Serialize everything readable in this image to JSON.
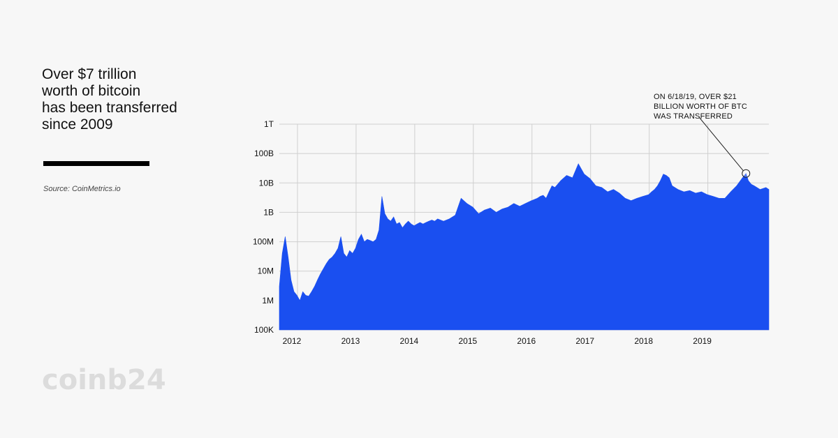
{
  "headline": {
    "lines": [
      "Over $7 trillion",
      "worth of bitcoin",
      "has been transferred",
      "since 2009"
    ]
  },
  "source": "Source: CoinMetrics.io",
  "logo": "coinb24",
  "colors": {
    "area": "#1a4ff0",
    "grid": "#cfcfcf",
    "text": "#111111",
    "logo": "#dcdcdc"
  },
  "chart_data": {
    "type": "area",
    "title": "",
    "xlabel": "",
    "ylabel": "",
    "y_scale": "log",
    "ylim": [
      100000,
      1000000000000
    ],
    "xlim": [
      2011.5,
      2019.85
    ],
    "y_ticks": [
      {
        "value": 1000000000000,
        "label": "1T"
      },
      {
        "value": 100000000000,
        "label": "100B"
      },
      {
        "value": 10000000000,
        "label": "10B"
      },
      {
        "value": 1000000000,
        "label": "1B"
      },
      {
        "value": 100000000,
        "label": "100M"
      },
      {
        "value": 10000000,
        "label": "10M"
      },
      {
        "value": 1000000,
        "label": "1M"
      },
      {
        "value": 100000,
        "label": "100K"
      }
    ],
    "x_ticks": [
      {
        "value": 2012,
        "label": "2012"
      },
      {
        "value": 2013,
        "label": "2013"
      },
      {
        "value": 2014,
        "label": "2014"
      },
      {
        "value": 2015,
        "label": "2015"
      },
      {
        "value": 2016,
        "label": "2016"
      },
      {
        "value": 2017,
        "label": "2017"
      },
      {
        "value": 2018,
        "label": "2018"
      },
      {
        "value": 2019,
        "label": "2019"
      }
    ],
    "grid": true,
    "series": [
      {
        "x": [
          2011.5,
          2011.55,
          2011.6,
          2011.65,
          2011.7,
          2011.75,
          2011.8,
          2011.85,
          2011.9,
          2011.95,
          2012.0,
          2012.05,
          2012.1,
          2012.15,
          2012.2,
          2012.25,
          2012.3,
          2012.35,
          2012.4,
          2012.45,
          2012.5,
          2012.55,
          2012.6,
          2012.65,
          2012.7,
          2012.75,
          2012.8,
          2012.85,
          2012.9,
          2012.95,
          2013.0,
          2013.05,
          2013.1,
          2013.15,
          2013.2,
          2013.25,
          2013.3,
          2013.35,
          2013.4,
          2013.45,
          2013.5,
          2013.55,
          2013.6,
          2013.65,
          2013.7,
          2013.75,
          2013.8,
          2013.85,
          2013.9,
          2013.95,
          2014.0,
          2014.05,
          2014.1,
          2014.15,
          2014.2,
          2014.3,
          2014.4,
          2014.5,
          2014.6,
          2014.7,
          2014.8,
          2014.9,
          2015.0,
          2015.1,
          2015.2,
          2015.3,
          2015.4,
          2015.5,
          2015.6,
          2015.7,
          2015.8,
          2015.9,
          2015.95,
          2016.0,
          2016.05,
          2016.1,
          2016.15,
          2016.2,
          2016.3,
          2016.4,
          2016.5,
          2016.6,
          2016.7,
          2016.8,
          2016.9,
          2017.0,
          2017.1,
          2017.2,
          2017.3,
          2017.4,
          2017.5,
          2017.6,
          2017.7,
          2017.8,
          2017.85,
          2017.9,
          2017.95,
          2018.0,
          2018.05,
          2018.1,
          2018.15,
          2018.2,
          2018.3,
          2018.4,
          2018.5,
          2018.6,
          2018.7,
          2018.8,
          2018.9,
          2019.0,
          2019.1,
          2019.2,
          2019.3,
          2019.4,
          2019.46,
          2019.5,
          2019.55,
          2019.6,
          2019.7,
          2019.8,
          2019.85
        ],
        "y": [
          3000000,
          40000000,
          150000000,
          30000000,
          5000000,
          2000000,
          1500000,
          1000000,
          2000000,
          1500000,
          1400000,
          2000000,
          3000000,
          5000000,
          8000000,
          12000000,
          18000000,
          25000000,
          30000000,
          40000000,
          60000000,
          150000000,
          40000000,
          30000000,
          50000000,
          40000000,
          60000000,
          120000000,
          180000000,
          100000000,
          120000000,
          110000000,
          100000000,
          120000000,
          250000000,
          3500000000,
          900000000,
          600000000,
          500000000,
          700000000,
          400000000,
          450000000,
          300000000,
          400000000,
          500000000,
          400000000,
          350000000,
          400000000,
          450000000,
          400000000,
          450000000,
          500000000,
          550000000,
          500000000,
          600000000,
          500000000,
          600000000,
          800000000,
          3000000000,
          2000000000,
          1500000000,
          900000000,
          1200000000,
          1400000000,
          1000000000,
          1300000000,
          1500000000,
          2000000000,
          1600000000,
          2000000000,
          2500000000,
          3000000000,
          3500000000,
          3800000000,
          3000000000,
          5000000000,
          8000000000,
          7000000000,
          12000000000,
          18000000000,
          15000000000,
          45000000000,
          20000000000,
          14000000000,
          8000000000,
          7000000000,
          5000000000,
          6000000000,
          4500000000,
          3000000000,
          2500000000,
          3000000000,
          3500000000,
          4000000000,
          5000000000,
          6000000000,
          8000000000,
          12000000000,
          20000000000,
          18000000000,
          15000000000,
          8000000000,
          6000000000,
          5000000000,
          5500000000,
          4500000000,
          5000000000,
          4000000000,
          3500000000,
          3000000000,
          3000000000,
          5000000000,
          8000000000,
          15000000000,
          21000000000,
          12000000000,
          9000000000,
          8000000000,
          6000000000,
          7000000000,
          6000000000
        ]
      }
    ],
    "annotation": {
      "lines": [
        "ON 6/18/19, OVER $21",
        "BILLION WORTH OF BTC",
        "WAS TRANSFERRED"
      ],
      "x": 2019.46,
      "y": 21000000000
    }
  }
}
